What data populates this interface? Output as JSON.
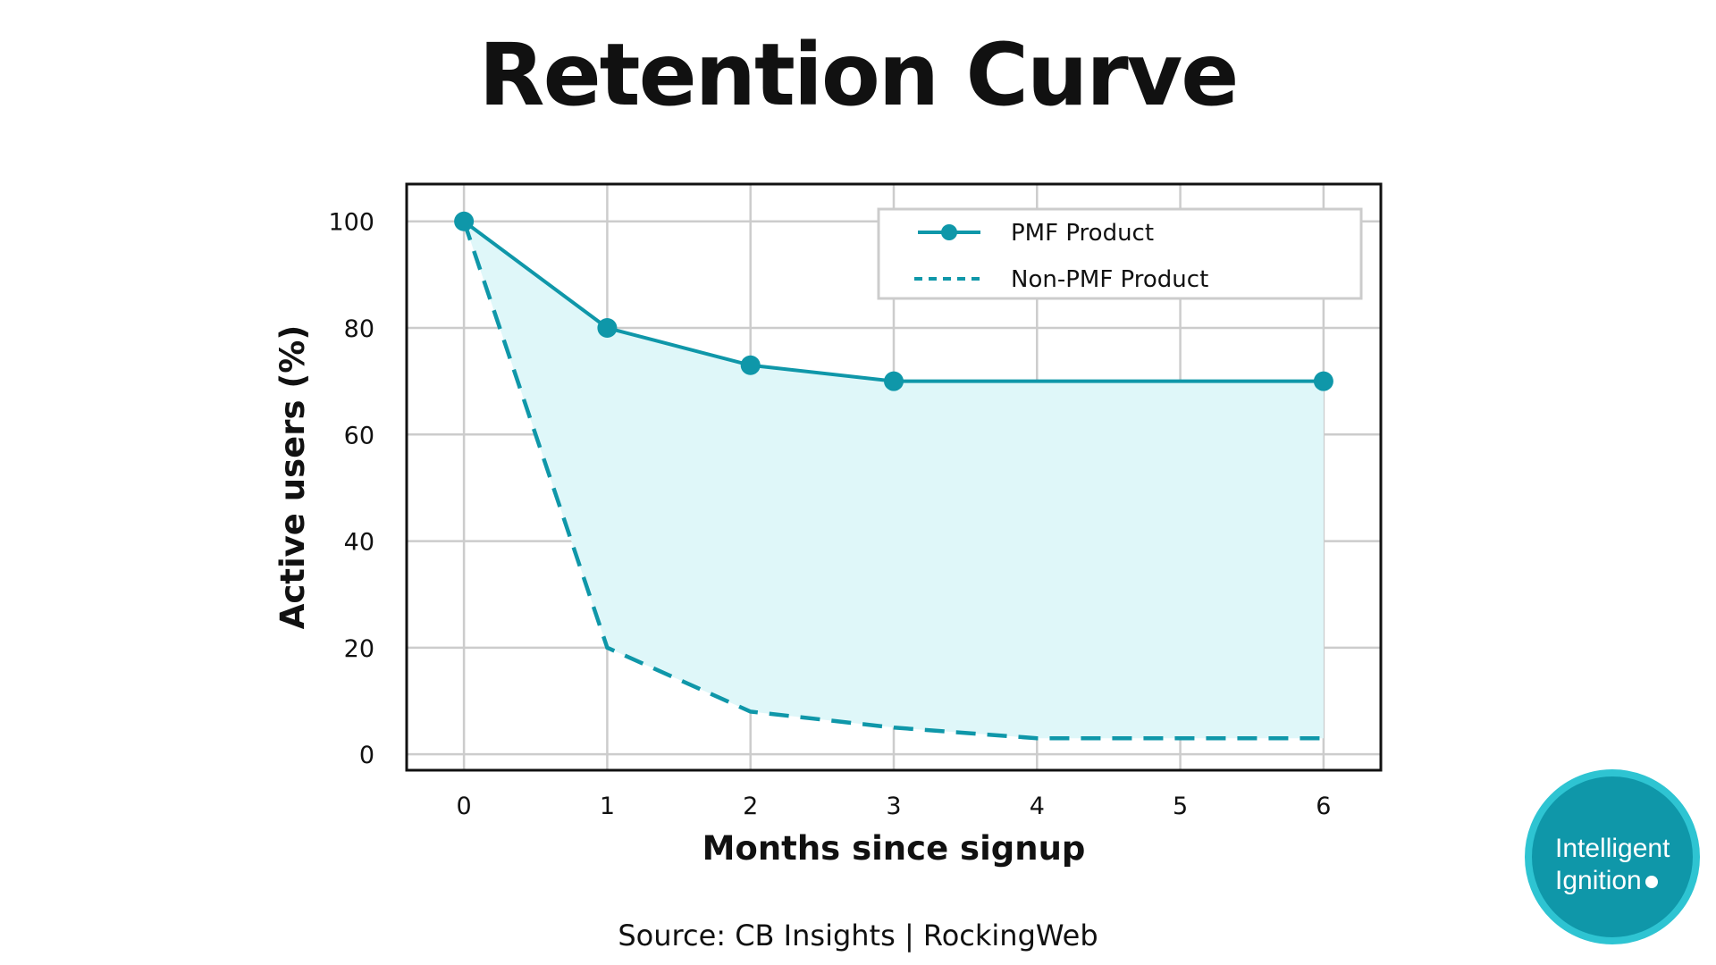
{
  "colors": {
    "series": "#0f97a9",
    "fill": "#dff7f9",
    "grid": "#cccccc",
    "axis": "#111111",
    "legend_border": "#cccccc"
  },
  "brand": {
    "line1": "Intelligent",
    "line2": "Ignition"
  },
  "source": "Source: CB Insights | RockingWeb",
  "chart_data": {
    "type": "line",
    "title": "Retention Curve",
    "xlabel": "Months since signup",
    "ylabel": "Active users (%)",
    "x": [
      0,
      1,
      2,
      3,
      4,
      5,
      6
    ],
    "xticks": [
      "0",
      "1",
      "2",
      "3",
      "4",
      "5",
      "6"
    ],
    "yticks": [
      "0",
      "20",
      "40",
      "60",
      "80",
      "100"
    ],
    "xlim": [
      -0.4,
      6.4
    ],
    "ylim": [
      -3,
      107
    ],
    "grid": true,
    "legend_position": "top-right",
    "fill_between": true,
    "series": [
      {
        "name": "PMF Product",
        "style": "solid-markers",
        "values": [
          100,
          80,
          73,
          70,
          70,
          70,
          70
        ],
        "marker_x": [
          0,
          1,
          2,
          3,
          6
        ]
      },
      {
        "name": "Non-PMF Product",
        "style": "dashed",
        "values": [
          100,
          20,
          8,
          5,
          3,
          3,
          3
        ]
      }
    ]
  }
}
